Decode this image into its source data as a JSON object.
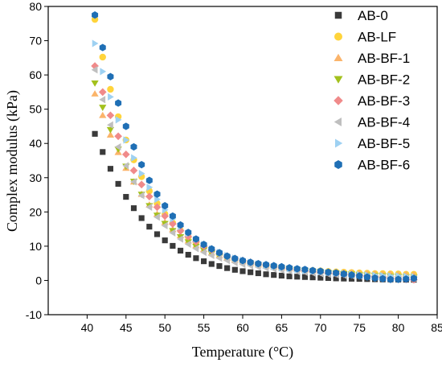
{
  "chart_data": {
    "type": "scatter",
    "xlabel": "Temperature (°C)",
    "ylabel": "Complex modulus (kPa)",
    "xlim": [
      35,
      85
    ],
    "ylim": [
      -10,
      80
    ],
    "xticks": [
      40,
      45,
      50,
      55,
      60,
      65,
      70,
      75,
      80,
      85
    ],
    "yticks": [
      -10,
      0,
      10,
      20,
      30,
      40,
      50,
      60,
      70,
      80
    ],
    "grid": false,
    "legend_position": "top-right",
    "x": [
      41,
      42,
      43,
      44,
      45,
      46,
      47,
      48,
      49,
      50,
      51,
      52,
      53,
      54,
      55,
      56,
      57,
      58,
      59,
      60,
      61,
      62,
      63,
      64,
      65,
      66,
      67,
      68,
      69,
      70,
      71,
      72,
      73,
      74,
      75,
      76,
      77,
      78,
      79,
      80,
      81,
      82
    ],
    "series": [
      {
        "name": "AB-0",
        "marker": "square",
        "color": "#3a3a3a",
        "values": [
          42.8,
          37.5,
          32.6,
          28.2,
          24.4,
          21.1,
          18.2,
          15.7,
          13.5,
          11.7,
          10.1,
          8.7,
          7.5,
          6.5,
          5.6,
          4.8,
          4.2,
          3.6,
          3.1,
          2.7,
          2.4,
          2.1,
          1.8,
          1.6,
          1.4,
          1.2,
          1.1,
          1.0,
          0.9,
          0.8,
          0.7,
          0.6,
          0.55,
          0.5,
          0.45,
          0.4,
          0.35,
          0.3,
          0.28,
          0.25,
          0.22,
          0.2
        ]
      },
      {
        "name": "AB-LF",
        "marker": "circle",
        "color": "#ffd43b",
        "values": [
          76.2,
          65.2,
          55.8,
          47.8,
          41.0,
          35.2,
          30.3,
          26.1,
          22.5,
          19.4,
          16.8,
          14.6,
          12.7,
          11.1,
          9.7,
          8.6,
          7.6,
          6.8,
          6.1,
          5.5,
          5.0,
          4.6,
          4.3,
          4.0,
          3.7,
          3.5,
          3.3,
          3.1,
          2.9,
          2.8,
          2.6,
          2.5,
          2.4,
          2.3,
          2.2,
          2.1,
          2.0,
          2.0,
          1.9,
          1.9,
          1.8,
          1.8
        ]
      },
      {
        "name": "AB-BF-1",
        "marker": "triangle-up",
        "color": "#fbb46a",
        "values": [
          54.5,
          48.2,
          42.5,
          37.4,
          32.8,
          28.8,
          25.2,
          22.1,
          19.4,
          17.0,
          14.9,
          13.1,
          11.6,
          10.2,
          9.1,
          8.1,
          7.3,
          6.6,
          6.0,
          5.5,
          5.0,
          4.6,
          4.3,
          4.0,
          3.7,
          3.5,
          3.3,
          3.1,
          2.9,
          2.8,
          2.6,
          2.5,
          2.4,
          2.3,
          2.2,
          2.1,
          2.0,
          1.9,
          1.9,
          1.8,
          1.8,
          1.7
        ]
      },
      {
        "name": "AB-BF-2",
        "marker": "triangle-down",
        "color": "#a3c11d",
        "values": [
          57.6,
          50.5,
          44.0,
          38.3,
          33.3,
          28.9,
          25.1,
          21.8,
          19.0,
          16.6,
          14.5,
          12.7,
          11.2,
          9.9,
          8.8,
          7.8,
          7.0,
          6.3,
          5.7,
          5.2,
          4.8,
          4.4,
          4.0,
          3.7,
          3.4,
          3.2,
          3.0,
          2.8,
          2.6,
          2.4,
          2.2,
          2.1,
          1.9,
          1.8,
          1.6,
          1.5,
          1.4,
          1.3,
          1.2,
          1.1,
          1.0,
          0.9
        ]
      },
      {
        "name": "AB-BF-3",
        "marker": "diamond",
        "color": "#f08a8a",
        "values": [
          62.6,
          55.0,
          48.2,
          42.1,
          36.8,
          32.1,
          28.0,
          24.5,
          21.4,
          18.8,
          16.5,
          14.5,
          12.8,
          11.3,
          10.0,
          8.9,
          7.9,
          7.1,
          6.4,
          5.8,
          5.3,
          4.8,
          4.4,
          4.0,
          3.7,
          3.4,
          3.1,
          2.8,
          2.6,
          2.4,
          2.2,
          2.0,
          1.8,
          1.6,
          1.4,
          1.2,
          1.0,
          0.8,
          0.6,
          0.4,
          0.3,
          0.2
        ]
      },
      {
        "name": "AB-BF-4",
        "marker": "triangle-left",
        "color": "#bfbfbf",
        "values": [
          61.5,
          52.8,
          45.4,
          39.0,
          33.5,
          28.8,
          24.8,
          21.4,
          18.5,
          16.0,
          13.9,
          12.1,
          10.6,
          9.3,
          8.2,
          7.3,
          6.5,
          5.8,
          5.2,
          4.7,
          4.3,
          3.9,
          3.6,
          3.3,
          3.0,
          2.8,
          2.6,
          2.4,
          2.2,
          2.0,
          1.8,
          1.7,
          1.5,
          1.4,
          1.3,
          1.2,
          1.1,
          1.0,
          0.9,
          0.8,
          0.8,
          0.7
        ]
      },
      {
        "name": "AB-BF-5",
        "marker": "triangle-right",
        "color": "#9ed1f2",
        "values": [
          69.2,
          61.0,
          53.6,
          46.9,
          41.0,
          35.8,
          31.2,
          27.2,
          23.7,
          20.6,
          18.0,
          15.7,
          13.7,
          12.0,
          10.5,
          9.2,
          8.2,
          7.3,
          6.5,
          5.9,
          5.3,
          4.8,
          4.4,
          4.0,
          3.7,
          3.4,
          3.1,
          2.9,
          2.7,
          2.5,
          2.3,
          2.1,
          2.0,
          1.8,
          1.7,
          1.6,
          1.5,
          1.4,
          1.3,
          1.3,
          1.2,
          1.1
        ]
      },
      {
        "name": "AB-BF-6",
        "marker": "hexagon",
        "color": "#1f6fb5",
        "values": [
          77.5,
          68.0,
          59.5,
          51.8,
          45.0,
          39.0,
          33.8,
          29.2,
          25.2,
          21.8,
          18.8,
          16.2,
          14.0,
          12.1,
          10.5,
          9.2,
          8.1,
          7.1,
          6.4,
          5.8,
          5.3,
          4.9,
          4.6,
          4.3,
          4.0,
          3.7,
          3.4,
          3.2,
          2.9,
          2.7,
          2.4,
          2.2,
          1.9,
          1.6,
          1.3,
          1.0,
          0.7,
          0.5,
          0.3,
          0.3,
          0.4,
          0.6
        ]
      }
    ]
  }
}
